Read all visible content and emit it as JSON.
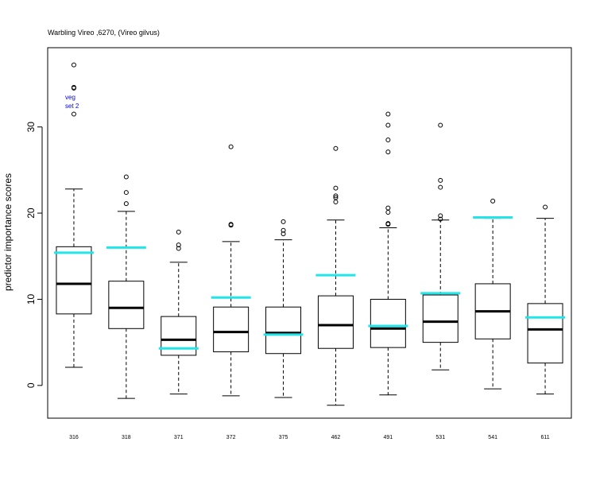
{
  "chart_data": {
    "type": "boxplot",
    "title": "Warbling Vireo ,6270, (Vireo gilvus)",
    "xlabel": "",
    "ylabel": "predictor importance scores",
    "ylim": [
      -3.8,
      39.2
    ],
    "yticks": [
      0,
      10,
      20,
      30
    ],
    "annotation": [
      "veg",
      "set 2"
    ],
    "categories": [
      "316",
      "318",
      "371",
      "372",
      "375",
      "462",
      "491",
      "531",
      "541",
      "611"
    ],
    "boxes": [
      {
        "lower_whisker": 2.1,
        "q1": 8.3,
        "median": 11.8,
        "q3": 16.1,
        "upper_whisker": 22.8,
        "outliers": [
          31.5,
          34.5,
          34.6,
          37.2
        ]
      },
      {
        "lower_whisker": -1.5,
        "q1": 6.6,
        "median": 9.0,
        "q3": 12.1,
        "upper_whisker": 20.2,
        "outliers": [
          21.1,
          22.4,
          24.2
        ]
      },
      {
        "lower_whisker": -1.0,
        "q1": 3.5,
        "median": 5.3,
        "q3": 8.0,
        "upper_whisker": 14.3,
        "outliers": [
          15.9,
          16.3,
          17.8
        ]
      },
      {
        "lower_whisker": -1.2,
        "q1": 3.9,
        "median": 6.2,
        "q3": 9.1,
        "upper_whisker": 16.7,
        "outliers": [
          18.6,
          18.7,
          27.7
        ]
      },
      {
        "lower_whisker": -1.4,
        "q1": 3.7,
        "median": 6.1,
        "q3": 9.1,
        "upper_whisker": 16.9,
        "outliers": [
          17.6,
          18.0,
          19.0
        ]
      },
      {
        "lower_whisker": -2.3,
        "q1": 4.3,
        "median": 7.0,
        "q3": 10.4,
        "upper_whisker": 19.2,
        "outliers": [
          21.3,
          21.8,
          22.0,
          22.9,
          27.5
        ]
      },
      {
        "lower_whisker": -1.1,
        "q1": 4.4,
        "median": 6.6,
        "q3": 10.0,
        "upper_whisker": 18.3,
        "outliers": [
          18.7,
          18.8,
          20.1,
          20.6,
          27.1,
          28.5,
          30.2,
          31.5
        ]
      },
      {
        "lower_whisker": 1.8,
        "q1": 5.0,
        "median": 7.4,
        "q3": 10.5,
        "upper_whisker": 19.2,
        "outliers": [
          19.3,
          19.7,
          23.0,
          23.8,
          30.2
        ]
      },
      {
        "lower_whisker": -0.4,
        "q1": 5.4,
        "median": 8.6,
        "q3": 11.8,
        "upper_whisker": 19.4,
        "outliers": [
          21.4
        ]
      },
      {
        "lower_whisker": -1.0,
        "q1": 2.6,
        "median": 6.5,
        "q3": 9.5,
        "upper_whisker": 19.4,
        "outliers": [
          20.7
        ]
      }
    ],
    "reference_values": [
      15.4,
      16.0,
      4.3,
      10.2,
      5.9,
      12.8,
      6.9,
      10.7,
      19.5,
      7.9
    ],
    "colors": {
      "reference": "#22e5ea",
      "box": "#000000",
      "annotation": "#0000ff"
    }
  }
}
